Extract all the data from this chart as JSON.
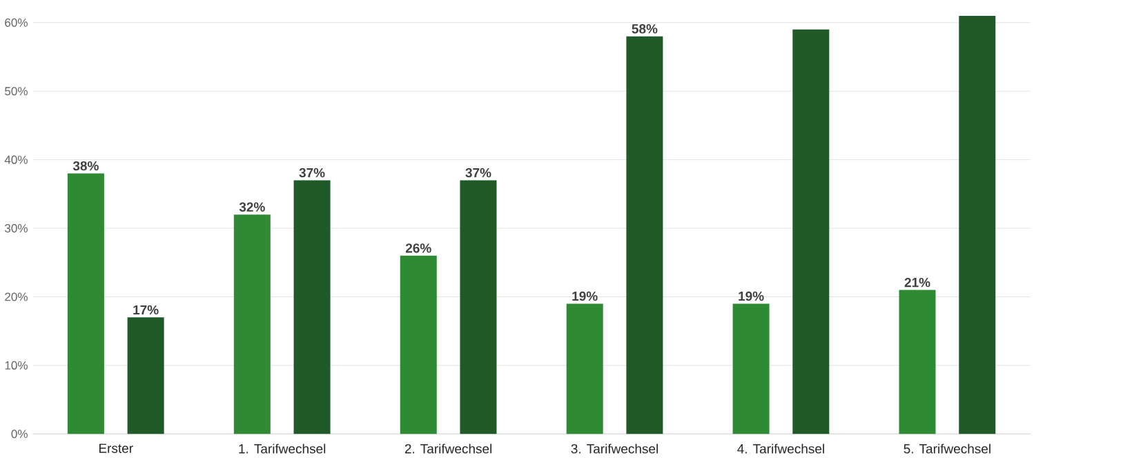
{
  "chart_data": {
    "type": "bar",
    "categories": [
      "Erster",
      "1. Tarifwechsel",
      "2. Tarifwechsel",
      "3. Tarifwechsel",
      "4. Tarifwechsel",
      "5. Tarifwechsel"
    ],
    "series": [
      {
        "color": "#2e8b34",
        "values": [
          38,
          32,
          26,
          19,
          19,
          21
        ],
        "value_labels": [
          "38%",
          "32%",
          "26%",
          "19%",
          "19%",
          "21%"
        ]
      },
      {
        "color": "#1f5a28",
        "values": [
          17,
          37,
          37,
          58,
          59,
          61
        ],
        "value_labels": [
          "17%",
          "37%",
          "37%",
          "58%",
          null,
          null
        ]
      }
    ],
    "ylim": [
      0,
      61
    ],
    "yticks": [
      {
        "value": 0,
        "label": "0%"
      },
      {
        "value": 10,
        "label": "10%"
      },
      {
        "value": 20,
        "label": "20%"
      },
      {
        "value": 30,
        "label": "30%"
      },
      {
        "value": 40,
        "label": "40%"
      },
      {
        "value": 50,
        "label": "50%"
      },
      {
        "value": 60,
        "label": "60%"
      }
    ],
    "grid": "y"
  }
}
